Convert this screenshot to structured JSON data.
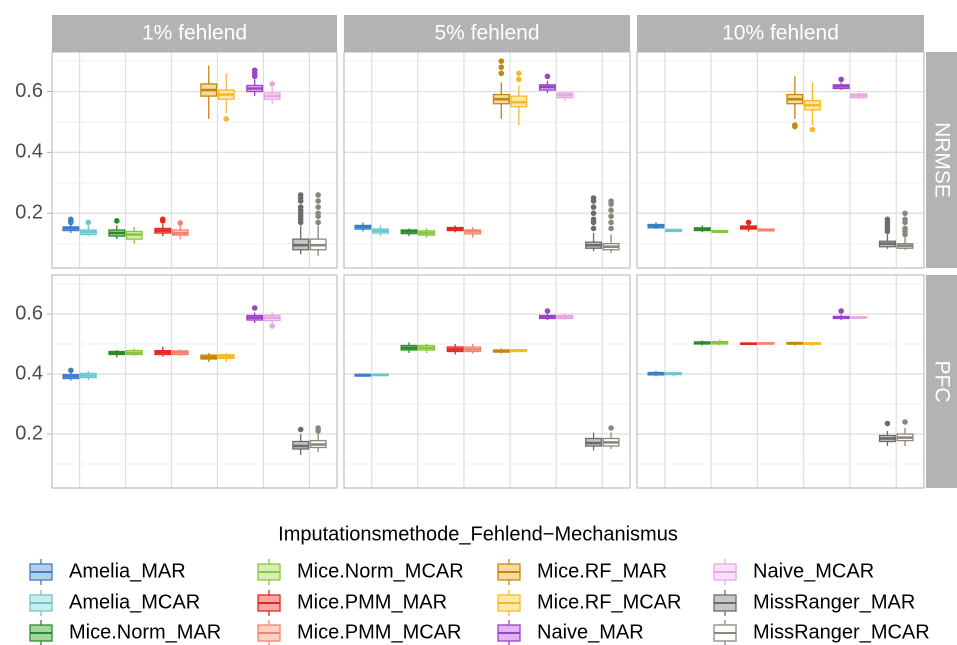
{
  "chart_data": {
    "type": "box",
    "legend_title": "Imputationsmethode_Fehlend−Mechanismus",
    "facet_columns": [
      "1% fehlend",
      "5% fehlend",
      "10% fehlend"
    ],
    "facet_rows": [
      "NRMSE",
      "PFC"
    ],
    "ylim": [
      0.02,
      0.73
    ],
    "yticks": [
      0.2,
      0.4,
      0.6
    ],
    "yminor": [
      0.1,
      0.3,
      0.5,
      0.7
    ],
    "grid": true,
    "series": [
      {
        "name": "Amelia_MAR",
        "color": "#3b7fc4",
        "fill": "#b5cfe9"
      },
      {
        "name": "Amelia_MCAR",
        "color": "#6cc7cf",
        "fill": "#cbecee"
      },
      {
        "name": "Mice.Norm_MAR",
        "color": "#2b8b2b",
        "fill": "#a7d4a0"
      },
      {
        "name": "Mice.Norm_MCAR",
        "color": "#8cc63f",
        "fill": "#d6edb3"
      },
      {
        "name": "Mice.PMM_MAR",
        "color": "#e3261f",
        "fill": "#f6a9a3"
      },
      {
        "name": "Mice.PMM_MCAR",
        "color": "#f3836f",
        "fill": "#fcd2c6"
      },
      {
        "name": "Mice.RF_MAR",
        "color": "#c7860b",
        "fill": "#f5dba2"
      },
      {
        "name": "Mice.RF_MCAR",
        "color": "#f6b92a",
        "fill": "#fdeaaa"
      },
      {
        "name": "Naive_MAR",
        "color": "#9c42c8",
        "fill": "#ddb8ef"
      },
      {
        "name": "Naive_MCAR",
        "color": "#e7a7e7",
        "fill": "#f9e2f9"
      },
      {
        "name": "MissRanger_MAR",
        "color": "#6b6b6b",
        "fill": "#c6c6c6"
      },
      {
        "name": "MissRanger_MCAR",
        "color": "#8d867b",
        "fill": "#ffffff"
      }
    ],
    "panels": [
      [
        {
          "boxes": [
            [
              0.135,
              0.143,
              0.15,
              0.155,
              0.165
            ],
            [
              0.125,
              0.13,
              0.138,
              0.145,
              0.16
            ],
            [
              0.115,
              0.125,
              0.135,
              0.145,
              0.16
            ],
            [
              0.1,
              0.115,
              0.13,
              0.14,
              0.155
            ],
            [
              0.125,
              0.135,
              0.143,
              0.15,
              0.165
            ],
            [
              0.115,
              0.128,
              0.135,
              0.145,
              0.16
            ],
            [
              0.51,
              0.585,
              0.605,
              0.625,
              0.685
            ],
            [
              0.53,
              0.575,
              0.59,
              0.605,
              0.66
            ],
            [
              0.585,
              0.6,
              0.61,
              0.62,
              0.64
            ],
            [
              0.56,
              0.575,
              0.585,
              0.595,
              0.615
            ],
            [
              0.065,
              0.08,
              0.095,
              0.115,
              0.16
            ],
            [
              0.06,
              0.08,
              0.095,
              0.115,
              0.16
            ]
          ],
          "outliers": [
            [
              0.17,
              0.175,
              0.18
            ],
            [
              0.17
            ],
            [
              0.175
            ],
            [],
            [
              0.175,
              0.18
            ],
            [
              0.168
            ],
            [],
            [
              0.51
            ],
            [
              0.65,
              0.66,
              0.67
            ],
            [
              0.625
            ],
            [
              0.17,
              0.18,
              0.19,
              0.2,
              0.21,
              0.22,
              0.24,
              0.25,
              0.26
            ],
            [
              0.17,
              0.19,
              0.2,
              0.22,
              0.24,
              0.26
            ]
          ]
        },
        {
          "boxes": [
            [
              0.14,
              0.148,
              0.155,
              0.16,
              0.17
            ],
            [
              0.125,
              0.135,
              0.142,
              0.148,
              0.16
            ],
            [
              0.125,
              0.133,
              0.14,
              0.145,
              0.15
            ],
            [
              0.12,
              0.128,
              0.135,
              0.142,
              0.15
            ],
            [
              0.137,
              0.143,
              0.148,
              0.153,
              0.16
            ],
            [
              0.12,
              0.132,
              0.14,
              0.145,
              0.155
            ],
            [
              0.51,
              0.56,
              0.575,
              0.59,
              0.63
            ],
            [
              0.49,
              0.55,
              0.565,
              0.585,
              0.62
            ],
            [
              0.595,
              0.605,
              0.615,
              0.622,
              0.635
            ],
            [
              0.57,
              0.58,
              0.588,
              0.595,
              0.6
            ],
            [
              0.075,
              0.085,
              0.095,
              0.105,
              0.135
            ],
            [
              0.07,
              0.08,
              0.09,
              0.1,
              0.13
            ]
          ],
          "outliers": [
            [],
            [],
            [],
            [],
            [],
            [],
            [
              0.66,
              0.68,
              0.7
            ],
            [
              0.64,
              0.66
            ],
            [
              0.65
            ],
            [],
            [
              0.15,
              0.17,
              0.18,
              0.2,
              0.22,
              0.24,
              0.25
            ],
            [
              0.15,
              0.17,
              0.19,
              0.21,
              0.23,
              0.24
            ]
          ]
        },
        {
          "boxes": [
            [
              0.148,
              0.152,
              0.158,
              0.163,
              0.17
            ],
            [
              0.138,
              0.14,
              0.143,
              0.147,
              0.15
            ],
            [
              0.138,
              0.143,
              0.148,
              0.152,
              0.16
            ],
            [
              0.133,
              0.137,
              0.14,
              0.143,
              0.147
            ],
            [
              0.14,
              0.148,
              0.153,
              0.158,
              0.165
            ],
            [
              0.14,
              0.142,
              0.145,
              0.148,
              0.15
            ],
            [
              0.51,
              0.56,
              0.575,
              0.59,
              0.65
            ],
            [
              0.49,
              0.54,
              0.555,
              0.57,
              0.63
            ],
            [
              0.605,
              0.61,
              0.617,
              0.622,
              0.63
            ],
            [
              0.575,
              0.58,
              0.587,
              0.592,
              0.598
            ],
            [
              0.083,
              0.09,
              0.1,
              0.108,
              0.13
            ],
            [
              0.08,
              0.085,
              0.093,
              0.1,
              0.12
            ]
          ],
          "outliers": [
            [],
            [],
            [],
            [],
            [
              0.17
            ],
            [],
            [
              0.49,
              0.485
            ],
            [
              0.475
            ],
            [
              0.64
            ],
            [],
            [
              0.14,
              0.15,
              0.16,
              0.17,
              0.18
            ],
            [
              0.13,
              0.14,
              0.15,
              0.17,
              0.18,
              0.2
            ]
          ]
        }
      ],
      [
        {
          "boxes": [
            [
              0.378,
              0.385,
              0.392,
              0.398,
              0.405
            ],
            [
              0.38,
              0.388,
              0.395,
              0.402,
              0.41
            ],
            [
              0.455,
              0.465,
              0.47,
              0.475,
              0.48
            ],
            [
              0.46,
              0.465,
              0.47,
              0.478,
              0.485
            ],
            [
              0.458,
              0.465,
              0.472,
              0.478,
              0.49
            ],
            [
              0.46,
              0.465,
              0.472,
              0.477,
              0.482
            ],
            [
              0.44,
              0.45,
              0.456,
              0.463,
              0.47
            ],
            [
              0.44,
              0.452,
              0.458,
              0.464,
              0.47
            ],
            [
              0.57,
              0.58,
              0.588,
              0.595,
              0.605
            ],
            [
              0.57,
              0.578,
              0.587,
              0.595,
              0.605
            ],
            [
              0.13,
              0.15,
              0.16,
              0.175,
              0.2
            ],
            [
              0.14,
              0.155,
              0.165,
              0.178,
              0.2
            ]
          ],
          "outliers": [
            [
              0.412
            ],
            [],
            [],
            [],
            [],
            [],
            [],
            [],
            [
              0.62
            ],
            [
              0.56
            ],
            [
              0.215
            ],
            [
              0.21,
              0.22
            ]
          ]
        },
        {
          "boxes": [
            [
              0.39,
              0.393,
              0.396,
              0.399,
              0.402
            ],
            [
              0.393,
              0.395,
              0.397,
              0.4,
              0.402
            ],
            [
              0.47,
              0.48,
              0.487,
              0.495,
              0.505
            ],
            [
              0.47,
              0.48,
              0.487,
              0.495,
              0.5
            ],
            [
              0.465,
              0.475,
              0.482,
              0.49,
              0.5
            ],
            [
              0.468,
              0.475,
              0.482,
              0.49,
              0.5
            ],
            [
              0.468,
              0.473,
              0.477,
              0.48,
              0.485
            ],
            [
              0.472,
              0.475,
              0.478,
              0.481,
              0.485
            ],
            [
              0.58,
              0.585,
              0.59,
              0.595,
              0.6
            ],
            [
              0.58,
              0.585,
              0.59,
              0.595,
              0.6
            ],
            [
              0.145,
              0.16,
              0.17,
              0.185,
              0.205
            ],
            [
              0.15,
              0.16,
              0.172,
              0.185,
              0.205
            ]
          ],
          "outliers": [
            [],
            [],
            [],
            [],
            [],
            [],
            [],
            [],
            [
              0.61
            ],
            [],
            [],
            [
              0.22
            ]
          ]
        },
        {
          "boxes": [
            [
              0.392,
              0.397,
              0.401,
              0.405,
              0.41
            ],
            [
              0.393,
              0.398,
              0.401,
              0.404,
              0.408
            ],
            [
              0.495,
              0.5,
              0.503,
              0.507,
              0.512
            ],
            [
              0.495,
              0.5,
              0.504,
              0.508,
              0.515
            ],
            [
              0.496,
              0.499,
              0.501,
              0.503,
              0.506
            ],
            [
              0.497,
              0.5,
              0.502,
              0.504,
              0.507
            ],
            [
              0.495,
              0.5,
              0.502,
              0.505,
              0.508
            ],
            [
              0.493,
              0.499,
              0.501,
              0.504,
              0.507
            ],
            [
              0.58,
              0.585,
              0.588,
              0.592,
              0.598
            ],
            [
              0.583,
              0.586,
              0.588,
              0.59,
              0.594
            ],
            [
              0.16,
              0.175,
              0.185,
              0.195,
              0.21
            ],
            [
              0.16,
              0.178,
              0.188,
              0.2,
              0.22
            ]
          ],
          "outliers": [
            [],
            [],
            [],
            [],
            [],
            [],
            [],
            [],
            [
              0.61
            ],
            [],
            [
              0.235
            ],
            [
              0.24
            ]
          ]
        }
      ]
    ]
  }
}
